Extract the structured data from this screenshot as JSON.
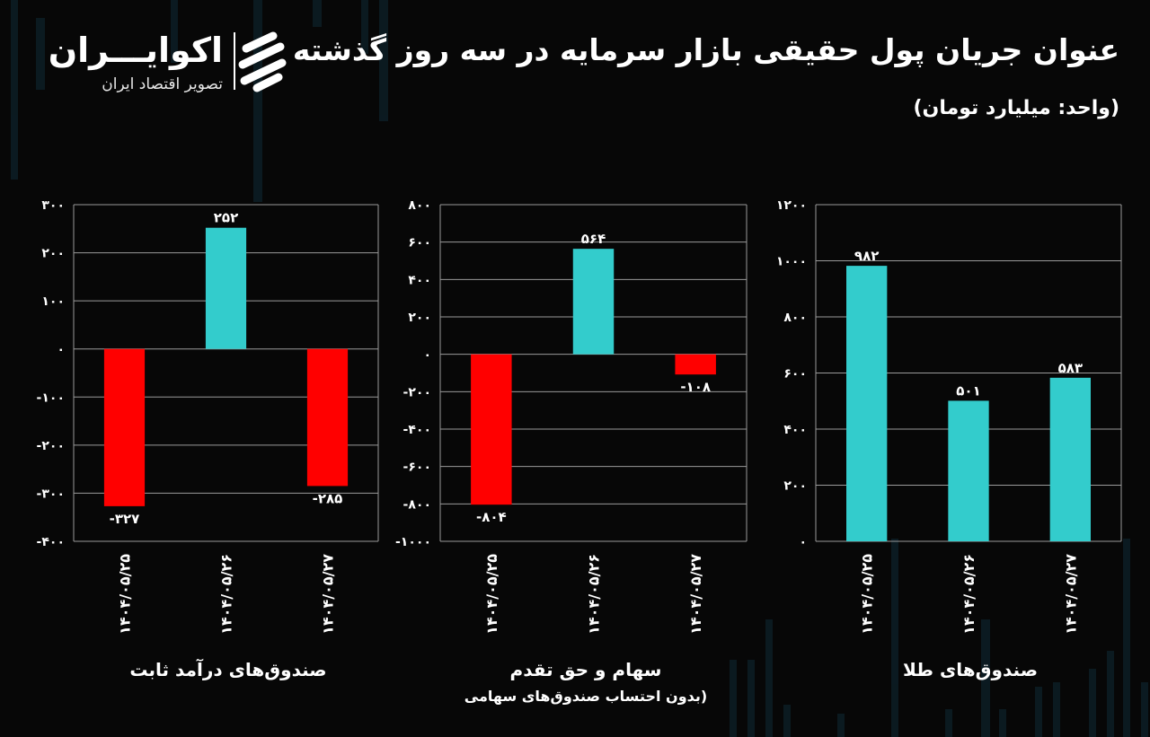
{
  "header": {
    "title": "عنوان جریان پول حقیقی بازار سرمایه در سه روز گذشته",
    "unit": "(واحد: میلیارد تومان)"
  },
  "logo": {
    "name": "اکوایـــران",
    "tagline": "تصویر اقتصاد ایران"
  },
  "colors": {
    "positive": "#33CCCC",
    "negative": "#FF0000",
    "grid": "#9a9a9a",
    "background": "#070707"
  },
  "chart_data": [
    {
      "type": "bar",
      "title": "صندوق‌های درآمد ثابت",
      "subtitle": "",
      "categories": [
        "۱۴۰۴/۰۵/۲۵",
        "۱۴۰۴/۰۵/۲۶",
        "۱۴۰۴/۰۵/۲۷"
      ],
      "values": [
        -327,
        252,
        -285
      ],
      "value_labels": [
        "-۳۲۷",
        "۲۵۲",
        "-۲۸۵"
      ],
      "ylim": [
        -400,
        300
      ],
      "yticks": [
        300,
        200,
        100,
        0,
        -100,
        -200,
        -300,
        -400
      ],
      "ytick_labels": [
        "۳۰۰",
        "۲۰۰",
        "۱۰۰",
        "۰",
        "-۱۰۰",
        "-۲۰۰",
        "-۳۰۰",
        "-۴۰۰"
      ]
    },
    {
      "type": "bar",
      "title": "سهام و حق تقدم",
      "subtitle": "(بدون احتساب صندوق‌های سهامی",
      "categories": [
        "۱۴۰۴/۰۵/۲۵",
        "۱۴۰۴/۰۵/۲۶",
        "۱۴۰۴/۰۵/۲۷"
      ],
      "values": [
        -804,
        564,
        -108
      ],
      "value_labels": [
        "-۸۰۴",
        "۵۶۴",
        "-۱۰۸"
      ],
      "ylim": [
        -1000,
        800
      ],
      "yticks": [
        800,
        600,
        400,
        200,
        0,
        -200,
        -400,
        -600,
        -800,
        -1000
      ],
      "ytick_labels": [
        "۸۰۰",
        "۶۰۰",
        "۴۰۰",
        "۲۰۰",
        "۰",
        "-۲۰۰",
        "-۴۰۰",
        "-۶۰۰",
        "-۸۰۰",
        "-۱۰۰۰"
      ]
    },
    {
      "type": "bar",
      "title": "صندوق‌های طلا",
      "subtitle": "",
      "categories": [
        "۱۴۰۴/۰۵/۲۵",
        "۱۴۰۴/۰۵/۲۶",
        "۱۴۰۴/۰۵/۲۷"
      ],
      "values": [
        982,
        501,
        583
      ],
      "value_labels": [
        "۹۸۲",
        "۵۰۱",
        "۵۸۳"
      ],
      "ylim": [
        0,
        1200
      ],
      "yticks": [
        1200,
        1000,
        800,
        600,
        400,
        200,
        0
      ],
      "ytick_labels": [
        "۱۲۰۰",
        "۱۰۰۰",
        "۸۰۰",
        "۶۰۰",
        "۴۰۰",
        "۲۰۰",
        "۰"
      ]
    }
  ]
}
